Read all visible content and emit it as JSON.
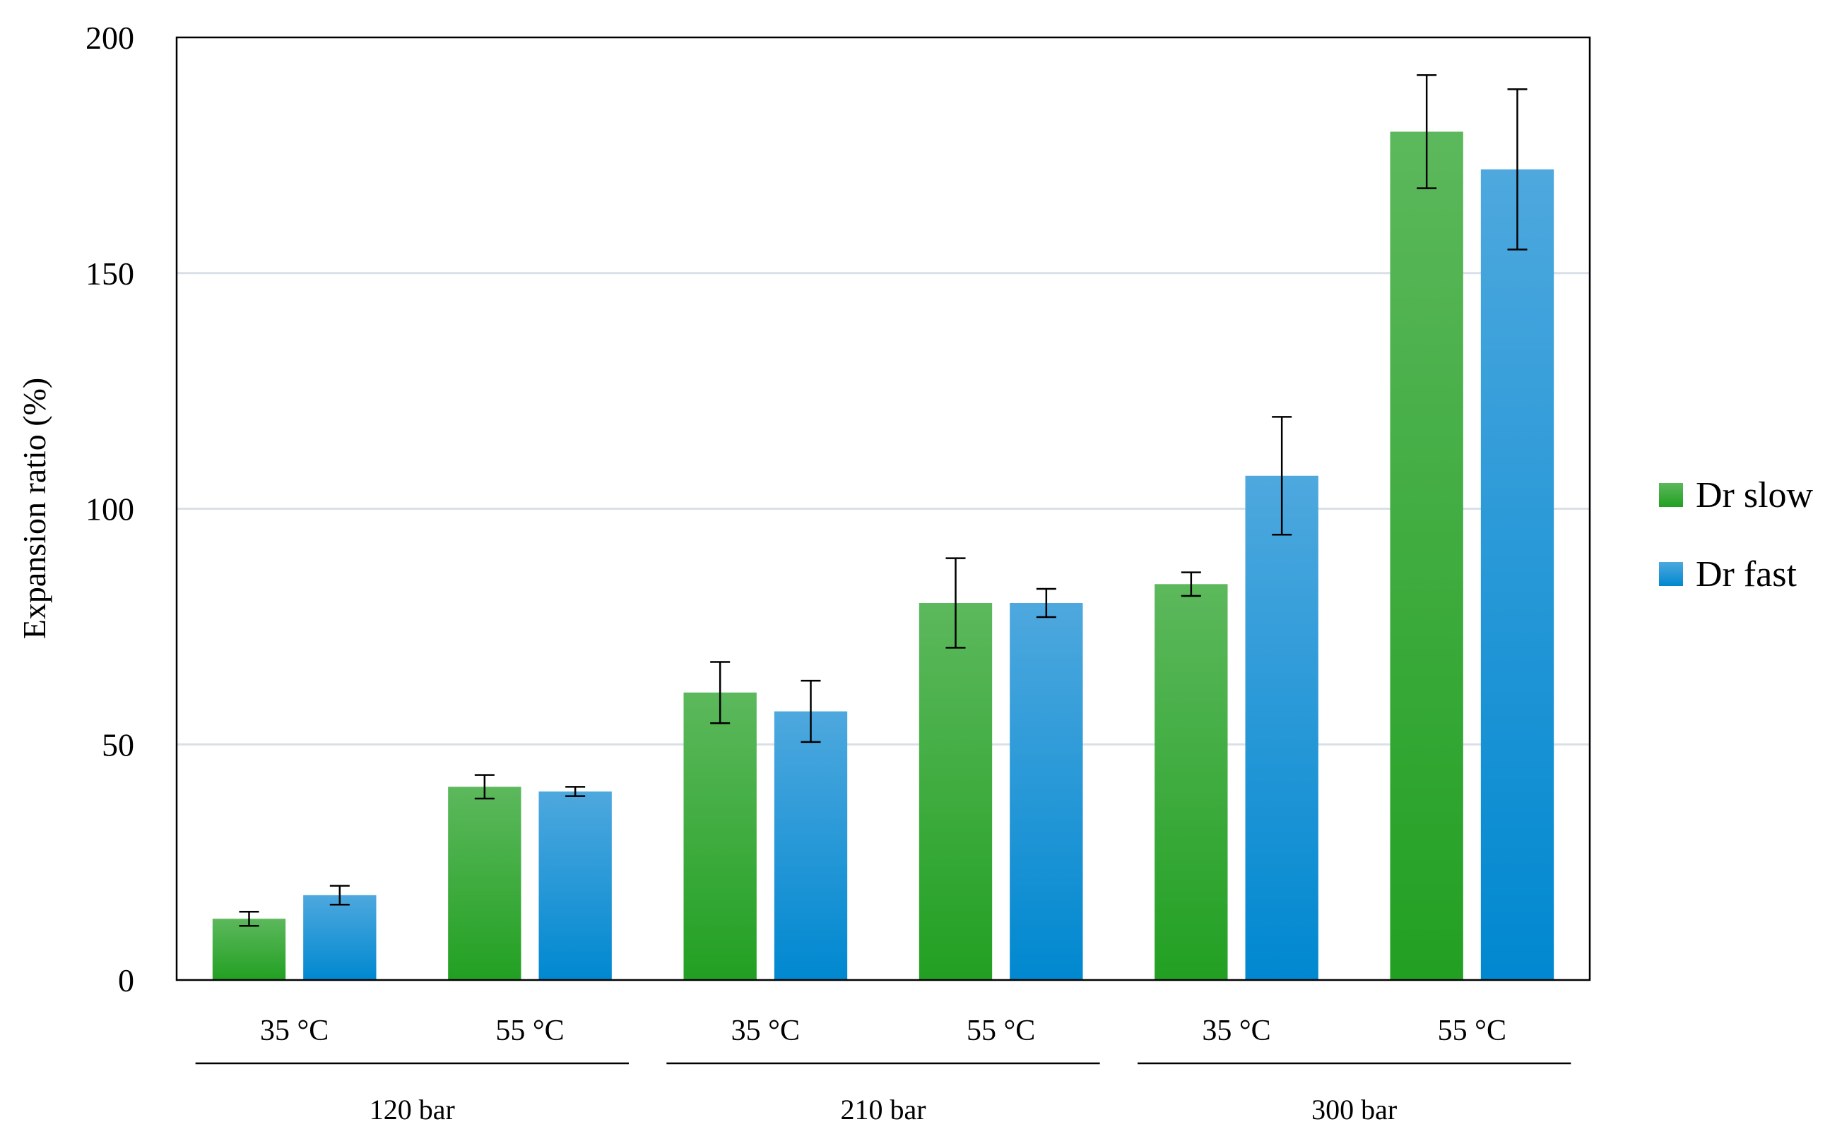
{
  "chart_data": {
    "type": "bar",
    "ylabel": "Expansion ratio (%)",
    "xlabel": "",
    "ylim": [
      0,
      200
    ],
    "yticks": [
      0,
      50,
      100,
      150,
      200
    ],
    "grid": true,
    "legend_position": "right",
    "categories": [
      {
        "label": "35 °C",
        "group": "120 bar"
      },
      {
        "label": "55 °C",
        "group": "120 bar"
      },
      {
        "label": "35 °C",
        "group": "210 bar"
      },
      {
        "label": "55 °C",
        "group": "210 bar"
      },
      {
        "label": "35 °C",
        "group": "300 bar"
      },
      {
        "label": "55 °C",
        "group": "300 bar"
      }
    ],
    "groups": [
      "120 bar",
      "210 bar",
      "300 bar"
    ],
    "series": [
      {
        "name": "Dr slow",
        "color": "#2ea82e",
        "values": [
          13,
          41,
          61,
          80,
          84,
          180
        ],
        "errors": [
          1.5,
          2.5,
          6.5,
          9.5,
          2.5,
          12
        ]
      },
      {
        "name": "Dr fast",
        "color": "#0096dc",
        "values": [
          18,
          40,
          57,
          80,
          107,
          172
        ],
        "errors": [
          2,
          1,
          6.5,
          3,
          12.5,
          17
        ]
      }
    ]
  }
}
